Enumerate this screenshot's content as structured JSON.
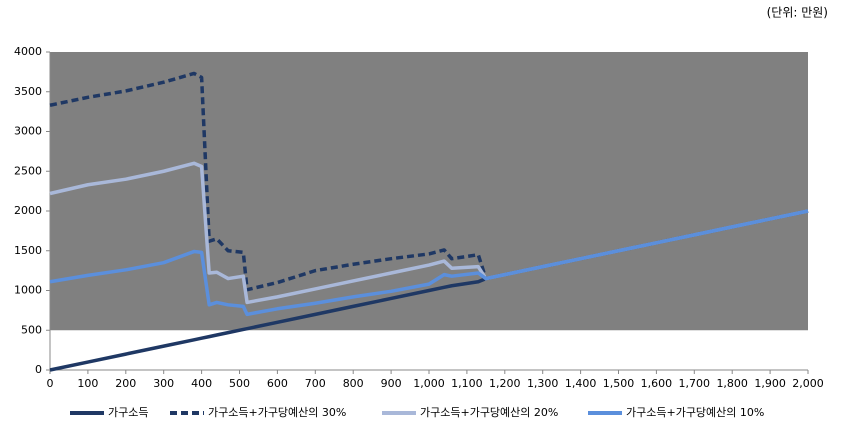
{
  "chart_data": {
    "type": "line",
    "subtitle": "(단위: 만원)",
    "x": [
      0,
      100,
      200,
      300,
      380,
      400,
      420,
      440,
      470,
      510,
      520,
      600,
      700,
      800,
      900,
      1000,
      1040,
      1060,
      1130,
      1150,
      1200,
      1300,
      1400,
      1500,
      1600,
      1700,
      1800,
      1900,
      2000
    ],
    "series": [
      {
        "name": "가구소득",
        "color": "#1f3864",
        "dash": false,
        "values": [
          0,
          100,
          200,
          300,
          380,
          400,
          420,
          440,
          470,
          510,
          520,
          600,
          700,
          800,
          900,
          1000,
          1040,
          1060,
          1110,
          1150,
          1200,
          1300,
          1400,
          1500,
          1600,
          1700,
          1800,
          1900,
          2000
        ]
      },
      {
        "name": "가구소득+가구당예산의 30%",
        "color": "#1f3864",
        "dash": true,
        "values": [
          3330,
          3430,
          3510,
          3620,
          3730,
          3680,
          1620,
          1650,
          1500,
          1480,
          1010,
          1100,
          1250,
          1330,
          1400,
          1460,
          1510,
          1400,
          1450,
          1150,
          1200,
          1300,
          1400,
          1500,
          1600,
          1700,
          1800,
          1900,
          2000
        ]
      },
      {
        "name": "가구소득+가구당예산의 20%",
        "color": "#a9b8d9",
        "dash": false,
        "values": [
          2220,
          2330,
          2400,
          2500,
          2600,
          2560,
          1220,
          1230,
          1150,
          1180,
          850,
          920,
          1020,
          1120,
          1220,
          1320,
          1370,
          1280,
          1300,
          1150,
          1200,
          1300,
          1400,
          1500,
          1600,
          1700,
          1800,
          1900,
          2000
        ]
      },
      {
        "name": "가구소득+가구당예산의 10%",
        "color": "#5b8fdc",
        "dash": false,
        "values": [
          1110,
          1190,
          1260,
          1350,
          1490,
          1480,
          820,
          850,
          820,
          800,
          700,
          770,
          840,
          920,
          990,
          1080,
          1200,
          1180,
          1220,
          1150,
          1200,
          1300,
          1400,
          1500,
          1600,
          1700,
          1800,
          1900,
          2000
        ]
      }
    ],
    "xlim": [
      0,
      2000
    ],
    "xticks": [
      0,
      100,
      200,
      300,
      400,
      500,
      600,
      700,
      800,
      900,
      {
        "value": 1000,
        "label": "1,000"
      },
      {
        "value": 1100,
        "label": "1,100"
      },
      {
        "value": 1200,
        "label": "1,200"
      },
      {
        "value": 1300,
        "label": "1,300"
      },
      {
        "value": 1400,
        "label": "1,400"
      },
      {
        "value": 1500,
        "label": "1,500"
      },
      {
        "value": 1600,
        "label": "1,600"
      },
      {
        "value": 1700,
        "label": "1,700"
      },
      {
        "value": 1800,
        "label": "1,800"
      },
      {
        "value": 1900,
        "label": "1,900"
      },
      {
        "value": 2000,
        "label": "2,000"
      }
    ],
    "ylim": [
      0,
      4000
    ],
    "yticks": [
      0,
      500,
      1000,
      1500,
      2000,
      2500,
      3000,
      3500,
      4000
    ],
    "background_band": {
      "range": [
        500,
        4000
      ],
      "color": "#808080"
    },
    "legend": "bottom"
  }
}
